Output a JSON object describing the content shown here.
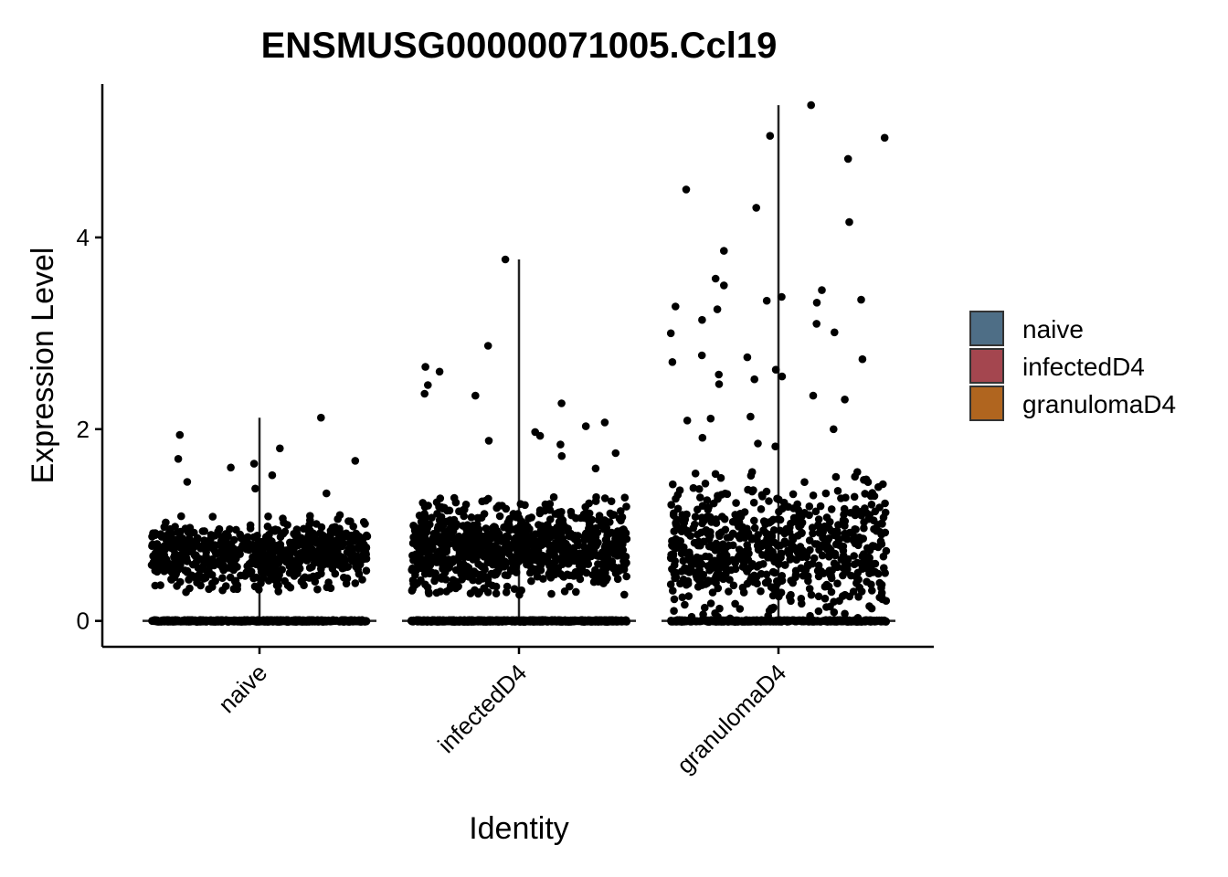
{
  "chart_data": {
    "type": "scatter",
    "subtype": "violin-jitter",
    "title": "ENSMUSG00000071005.Ccl19",
    "xlabel": "Identity",
    "ylabel": "Expression Level",
    "categories": [
      "naive",
      "infectedD4",
      "granulomaD4"
    ],
    "ylim": [
      -0.27,
      5.6
    ],
    "yticks": [
      0,
      2,
      4
    ],
    "grid": false,
    "legend": {
      "position": "right",
      "entries": [
        {
          "name": "naive",
          "color": "#4E6E86"
        },
        {
          "name": "infectedD4",
          "color": "#A4464F"
        },
        {
          "name": "granulomaD4",
          "color": "#B0651F"
        }
      ]
    },
    "violin_max": [
      2.12,
      3.77,
      5.38
    ],
    "series": [
      {
        "name": "naive",
        "zero_count": 600,
        "bulk": {
          "count": 650,
          "mean": 0.68,
          "sd": 0.17
        },
        "notable_points": [
          2.12,
          1.94,
          1.8,
          1.69,
          1.67,
          1.64,
          1.6,
          1.52,
          1.45,
          1.38,
          1.33,
          0.34,
          0.3
        ]
      },
      {
        "name": "infectedD4",
        "zero_count": 650,
        "bulk": {
          "count": 900,
          "mean": 0.75,
          "sd": 0.22
        },
        "notable_points": [
          3.77,
          2.87,
          2.65,
          2.6,
          2.46,
          2.37,
          2.35,
          2.27,
          2.07,
          2.03,
          1.97,
          1.93,
          1.88,
          1.84,
          1.75,
          1.72,
          1.59
        ]
      },
      {
        "name": "granulomaD4",
        "zero_count": 400,
        "bulk": {
          "count": 650,
          "mean": 0.75,
          "sd": 0.33
        },
        "notable_points": [
          5.38,
          5.06,
          5.04,
          4.82,
          4.5,
          4.31,
          4.16,
          3.86,
          3.57,
          3.5,
          3.45,
          3.38,
          3.35,
          3.34,
          3.32,
          3.28,
          3.25,
          3.14,
          3.1,
          3.01,
          3.0,
          2.77,
          2.75,
          2.73,
          2.7,
          2.62,
          2.57,
          2.55,
          2.52,
          2.47,
          2.35,
          2.31,
          2.13,
          2.11,
          2.09,
          2.0,
          1.91,
          1.85,
          1.82,
          0.25,
          0.2,
          0.15
        ]
      }
    ]
  }
}
